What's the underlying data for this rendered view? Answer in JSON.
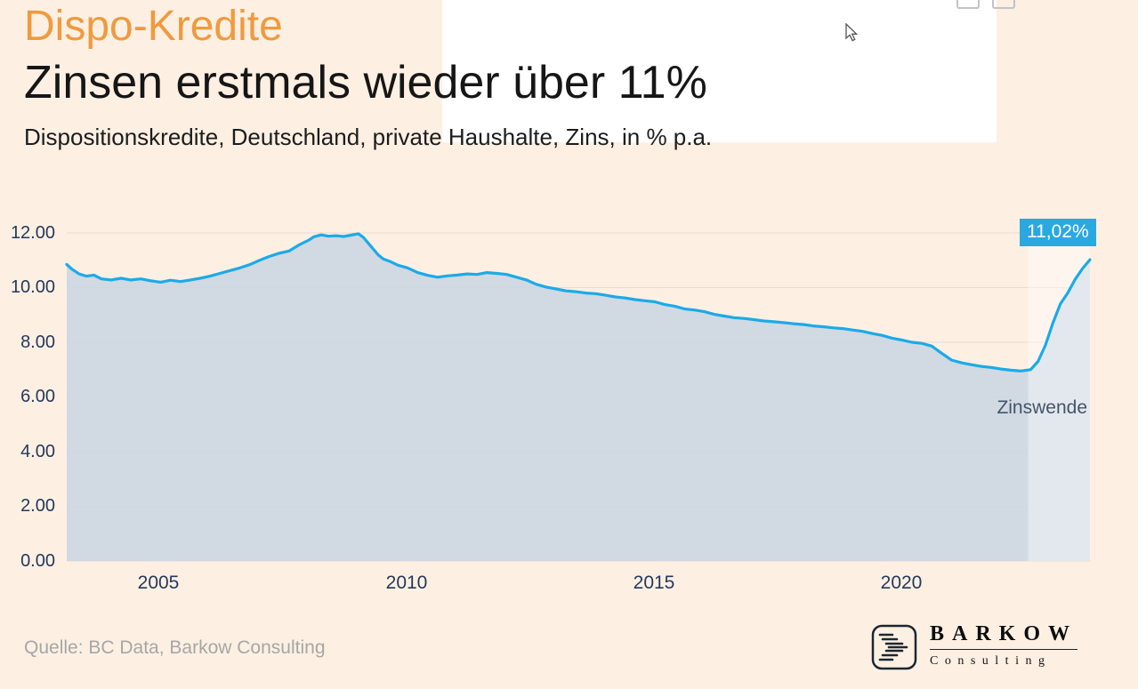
{
  "header": {
    "title": "Dispo-Kredite",
    "subtitle": "Zinsen erstmals wieder über 11%",
    "description": "Dispositionskredite, Deutschland, private Haushalte, Zins, in % p.a."
  },
  "chart_data": {
    "type": "area",
    "title": "Dispo-Kredite — Zinsen erstmals wieder über 11%",
    "xlabel": "",
    "ylabel": "Zins in % p.a.",
    "xlim": [
      2003.1,
      2023.8
    ],
    "ylim": [
      0,
      12
    ],
    "yticks": [
      "0.00",
      "2.00",
      "4.00",
      "6.00",
      "8.00",
      "10.00",
      "12.00"
    ],
    "xticks": [
      "2005",
      "2010",
      "2015",
      "2020"
    ],
    "grid": true,
    "legend": "none",
    "last_value_label": "11,02%",
    "annotation": "Zinswende",
    "highlight_band": {
      "from": 2022.55,
      "to": 2023.8
    },
    "colors": {
      "background": "#fdf0e3",
      "accent_orange": "#f09a3e",
      "line": "#1caae8",
      "fill": "#cfd7e3",
      "badge_bg": "#29a9e0",
      "axis_label": "#24395c",
      "annotation": "#44546a"
    },
    "points": [
      [
        2003.1,
        10.85
      ],
      [
        2003.2,
        10.68
      ],
      [
        2003.35,
        10.5
      ],
      [
        2003.5,
        10.42
      ],
      [
        2003.65,
        10.46
      ],
      [
        2003.8,
        10.32
      ],
      [
        2004.0,
        10.28
      ],
      [
        2004.2,
        10.34
      ],
      [
        2004.4,
        10.28
      ],
      [
        2004.6,
        10.32
      ],
      [
        2004.8,
        10.25
      ],
      [
        2005.0,
        10.2
      ],
      [
        2005.2,
        10.27
      ],
      [
        2005.4,
        10.22
      ],
      [
        2005.6,
        10.28
      ],
      [
        2005.8,
        10.34
      ],
      [
        2006.0,
        10.42
      ],
      [
        2006.2,
        10.52
      ],
      [
        2006.4,
        10.62
      ],
      [
        2006.6,
        10.72
      ],
      [
        2006.8,
        10.84
      ],
      [
        2007.0,
        11.0
      ],
      [
        2007.2,
        11.14
      ],
      [
        2007.4,
        11.26
      ],
      [
        2007.6,
        11.34
      ],
      [
        2007.8,
        11.56
      ],
      [
        2008.0,
        11.74
      ],
      [
        2008.1,
        11.86
      ],
      [
        2008.25,
        11.93
      ],
      [
        2008.4,
        11.88
      ],
      [
        2008.55,
        11.9
      ],
      [
        2008.7,
        11.87
      ],
      [
        2008.85,
        11.92
      ],
      [
        2009.0,
        11.97
      ],
      [
        2009.1,
        11.84
      ],
      [
        2009.25,
        11.52
      ],
      [
        2009.4,
        11.2
      ],
      [
        2009.5,
        11.05
      ],
      [
        2009.65,
        10.95
      ],
      [
        2009.8,
        10.82
      ],
      [
        2010.0,
        10.72
      ],
      [
        2010.2,
        10.55
      ],
      [
        2010.4,
        10.45
      ],
      [
        2010.6,
        10.38
      ],
      [
        2010.8,
        10.43
      ],
      [
        2011.0,
        10.46
      ],
      [
        2011.2,
        10.5
      ],
      [
        2011.4,
        10.48
      ],
      [
        2011.6,
        10.55
      ],
      [
        2011.8,
        10.52
      ],
      [
        2012.0,
        10.48
      ],
      [
        2012.2,
        10.38
      ],
      [
        2012.4,
        10.28
      ],
      [
        2012.6,
        10.12
      ],
      [
        2012.8,
        10.02
      ],
      [
        2013.0,
        9.95
      ],
      [
        2013.2,
        9.88
      ],
      [
        2013.4,
        9.85
      ],
      [
        2013.6,
        9.8
      ],
      [
        2013.8,
        9.78
      ],
      [
        2014.0,
        9.72
      ],
      [
        2014.2,
        9.66
      ],
      [
        2014.4,
        9.62
      ],
      [
        2014.6,
        9.56
      ],
      [
        2014.8,
        9.52
      ],
      [
        2015.0,
        9.48
      ],
      [
        2015.2,
        9.38
      ],
      [
        2015.4,
        9.32
      ],
      [
        2015.6,
        9.22
      ],
      [
        2015.8,
        9.18
      ],
      [
        2016.0,
        9.12
      ],
      [
        2016.2,
        9.02
      ],
      [
        2016.4,
        8.96
      ],
      [
        2016.6,
        8.9
      ],
      [
        2016.8,
        8.87
      ],
      [
        2017.0,
        8.83
      ],
      [
        2017.2,
        8.78
      ],
      [
        2017.4,
        8.75
      ],
      [
        2017.6,
        8.72
      ],
      [
        2017.8,
        8.68
      ],
      [
        2018.0,
        8.65
      ],
      [
        2018.2,
        8.6
      ],
      [
        2018.4,
        8.57
      ],
      [
        2018.6,
        8.53
      ],
      [
        2018.8,
        8.5
      ],
      [
        2019.0,
        8.45
      ],
      [
        2019.2,
        8.4
      ],
      [
        2019.4,
        8.32
      ],
      [
        2019.6,
        8.25
      ],
      [
        2019.8,
        8.15
      ],
      [
        2020.0,
        8.08
      ],
      [
        2020.2,
        8.0
      ],
      [
        2020.4,
        7.96
      ],
      [
        2020.6,
        7.86
      ],
      [
        2020.8,
        7.6
      ],
      [
        2021.0,
        7.35
      ],
      [
        2021.2,
        7.25
      ],
      [
        2021.4,
        7.18
      ],
      [
        2021.6,
        7.12
      ],
      [
        2021.8,
        7.08
      ],
      [
        2022.0,
        7.02
      ],
      [
        2022.2,
        6.98
      ],
      [
        2022.4,
        6.95
      ],
      [
        2022.6,
        7.0
      ],
      [
        2022.75,
        7.3
      ],
      [
        2022.9,
        7.9
      ],
      [
        2023.05,
        8.7
      ],
      [
        2023.2,
        9.4
      ],
      [
        2023.35,
        9.8
      ],
      [
        2023.5,
        10.3
      ],
      [
        2023.65,
        10.7
      ],
      [
        2023.8,
        11.02
      ]
    ]
  },
  "footer": {
    "source": "Quelle: BC Data, Barkow Consulting",
    "logo_title": "BARKOW",
    "logo_subtitle": "Consulting"
  }
}
